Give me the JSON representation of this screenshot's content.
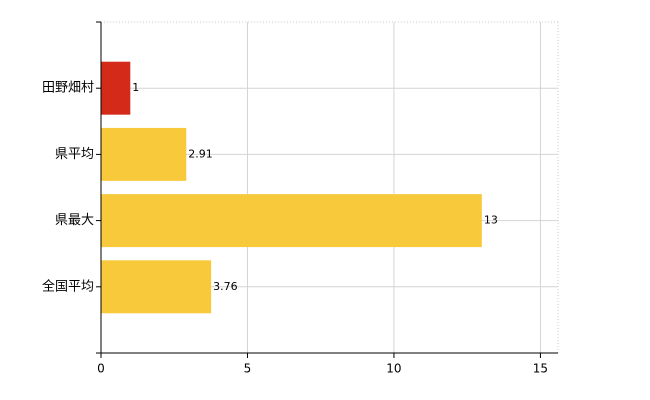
{
  "chart_data": {
    "type": "bar",
    "orientation": "horizontal",
    "categories": [
      "田野畑村",
      "県平均",
      "県最大",
      "全国平均"
    ],
    "values": [
      1,
      2.91,
      13,
      3.76
    ],
    "colors": [
      "#d42a1a",
      "#f8c93a",
      "#f8c93a",
      "#f8c93a"
    ],
    "xlim": [
      0,
      15.6
    ],
    "xticks": [
      0,
      5,
      10,
      15
    ],
    "grid": true
  }
}
